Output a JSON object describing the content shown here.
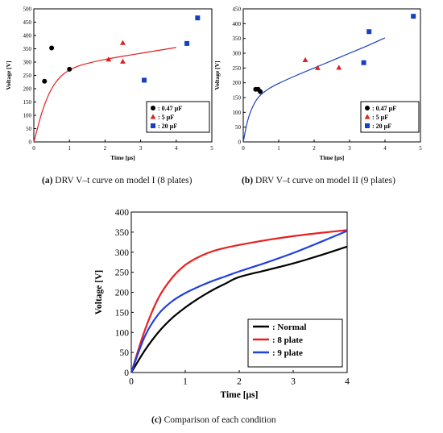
{
  "chart_data": [
    {
      "type": "scatter",
      "panel": "a",
      "xlabel": "Time [µs]",
      "ylabel": "Voltage [V]",
      "xlim": [
        0,
        5
      ],
      "ylim": [
        0,
        500
      ],
      "xticks": [
        "0",
        "1",
        "2",
        "3",
        "4",
        "5"
      ],
      "yticks": [
        "0",
        "50",
        "100",
        "150",
        "200",
        "250",
        "300",
        "350",
        "400",
        "450",
        "500"
      ],
      "legend_position": "bottom-right",
      "series": [
        {
          "name": ": 0.47 µF",
          "marker": "circle",
          "color": "#000000",
          "points": [
            [
              0.3,
              228
            ],
            [
              0.5,
              353
            ],
            [
              1.0,
              273
            ]
          ]
        },
        {
          "name": ": 5 µF",
          "marker": "triangle",
          "color": "#e02020",
          "points": [
            [
              2.1,
              310
            ],
            [
              2.5,
              372
            ],
            [
              2.5,
              302
            ]
          ]
        },
        {
          "name": ": 20 µF",
          "marker": "square",
          "color": "#1740c0",
          "points": [
            [
              3.1,
              232
            ],
            [
              4.3,
              370
            ],
            [
              4.6,
              466
            ]
          ]
        }
      ],
      "fit_curve": {
        "color": "#e02020",
        "x": [
          0,
          0.25,
          0.5,
          0.75,
          1.0,
          1.25,
          1.5,
          2.0,
          2.5,
          3.0,
          3.5,
          4.0
        ],
        "y": [
          0,
          120,
          200,
          245,
          270,
          285,
          295,
          310,
          322,
          333,
          344,
          355
        ]
      }
    },
    {
      "type": "scatter",
      "panel": "b",
      "xlabel": "Time [µs]",
      "ylabel": "Voltage [V]",
      "xlim": [
        0,
        5
      ],
      "ylim": [
        0,
        450
      ],
      "xticks": [
        "0",
        "1",
        "2",
        "3",
        "4",
        "5"
      ],
      "yticks": [
        "0",
        "50",
        "100",
        "150",
        "200",
        "250",
        "300",
        "350",
        "400",
        "450"
      ],
      "legend_position": "bottom-right",
      "series": [
        {
          "name": ": 0.47 µF",
          "marker": "circle",
          "color": "#000000",
          "points": [
            [
              0.35,
              178
            ],
            [
              0.42,
              178
            ],
            [
              0.48,
              170
            ]
          ]
        },
        {
          "name": ": 5 µF",
          "marker": "triangle",
          "color": "#e02020",
          "points": [
            [
              1.75,
              277
            ],
            [
              2.1,
              250
            ],
            [
              2.7,
              251
            ]
          ]
        },
        {
          "name": ": 20 µF",
          "marker": "square",
          "color": "#1740c0",
          "points": [
            [
              3.4,
              268
            ],
            [
              3.55,
              373
            ],
            [
              4.8,
              425
            ]
          ]
        }
      ],
      "fit_curve": {
        "color": "#1740c0",
        "x": [
          0,
          0.1,
          0.2,
          0.35,
          0.5,
          0.75,
          1.0,
          1.5,
          2.0,
          2.5,
          3.0,
          3.5,
          4.0
        ],
        "y": [
          0,
          60,
          100,
          138,
          160,
          182,
          198,
          225,
          250,
          275,
          300,
          325,
          352
        ]
      }
    },
    {
      "type": "line",
      "panel": "c",
      "xlabel": "Time [µs]",
      "ylabel": "Voltage [V]",
      "xlim": [
        0,
        4
      ],
      "ylim": [
        0,
        400
      ],
      "xticks": [
        "0",
        "1",
        "2",
        "3",
        "4"
      ],
      "yticks": [
        "0",
        "50",
        "100",
        "150",
        "200",
        "250",
        "300",
        "350",
        "400"
      ],
      "legend_position": "bottom-right",
      "series": [
        {
          "name": ": Normal",
          "color": "#000000",
          "x": [
            0,
            0.25,
            0.5,
            0.75,
            1.0,
            1.25,
            1.5,
            1.75,
            2.0,
            2.5,
            3.0,
            3.5,
            4.0
          ],
          "y": [
            0,
            55,
            100,
            135,
            162,
            185,
            205,
            222,
            238,
            255,
            272,
            292,
            314
          ]
        },
        {
          "name": ": 8 plate",
          "color": "#e82020",
          "x": [
            0,
            0.25,
            0.5,
            0.75,
            1.0,
            1.25,
            1.5,
            1.75,
            2.0,
            2.5,
            3.0,
            3.5,
            4.0
          ],
          "y": [
            0,
            105,
            185,
            235,
            268,
            288,
            302,
            311,
            318,
            330,
            340,
            348,
            355
          ]
        },
        {
          "name": ": 9 plate",
          "color": "#2040e0",
          "x": [
            0,
            0.25,
            0.5,
            0.75,
            1.0,
            1.25,
            1.5,
            1.75,
            2.0,
            2.5,
            3.0,
            3.5,
            4.0
          ],
          "y": [
            0,
            90,
            145,
            177,
            198,
            214,
            228,
            240,
            252,
            274,
            298,
            325,
            353
          ]
        }
      ]
    }
  ],
  "captions": {
    "a": {
      "letter": "(a)",
      "text": " DRV V–t curve on model I (8 plates)"
    },
    "b": {
      "letter": "(b)",
      "text": " DRV V–t curve on model II (9 plates)"
    },
    "c": {
      "letter": "(c)",
      "text": " Comparison of each condition"
    }
  }
}
